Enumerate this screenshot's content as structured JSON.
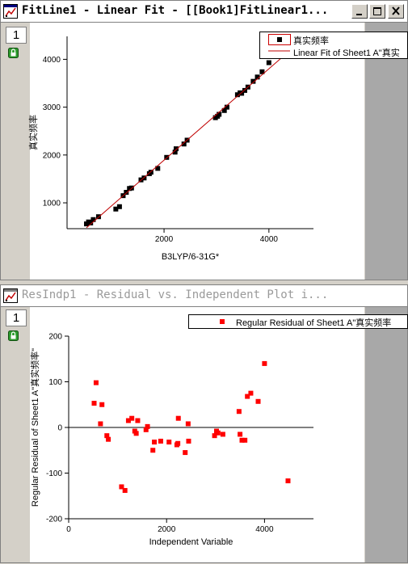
{
  "window1": {
    "title": "FitLine1 - Linear Fit - [[Book1]FitLinear1...",
    "page_number": "1",
    "legend": {
      "items": [
        {
          "label": "真实频率",
          "marker": "square",
          "color": "#000000"
        },
        {
          "label": "Linear Fit of Sheet1 A\"真实",
          "marker": "line",
          "color": "#c00000"
        }
      ]
    }
  },
  "window2": {
    "title": "ResIndp1 - Residual vs. Independent Plot i...",
    "page_number": "1",
    "legend": {
      "items": [
        {
          "label": "Regular Residual of Sheet1 A\"真实频率",
          "marker": "square",
          "color": "#ff0000"
        }
      ]
    }
  },
  "colors": {
    "fit_points": "#000000",
    "fit_line": "#c00000",
    "residual_points": "#ff0000",
    "gray_strip": "#a8a8a8",
    "title_active_text": "#000000",
    "title_inactive_text": "#9a9a9a"
  },
  "icons": [
    "graph-window-icon",
    "minimize-icon",
    "restore-icon",
    "close-icon",
    "lock-icon"
  ],
  "chart_data": [
    {
      "type": "scatter",
      "title": "",
      "xlabel": "B3LYP/6-31G*",
      "ylabel": "真实频率",
      "xlim": [
        150,
        4850
      ],
      "ylim": [
        460,
        4480
      ],
      "xticks": [
        2000,
        4000
      ],
      "yticks": [
        1000,
        2000,
        3000,
        4000
      ],
      "series": [
        {
          "name": "真实频率",
          "x": [
            520,
            560,
            600,
            650,
            750,
            1080,
            1150,
            1220,
            1280,
            1340,
            1380,
            1560,
            1620,
            1720,
            1750,
            1880,
            2050,
            2210,
            2230,
            2380,
            2440,
            2980,
            3020,
            3050,
            3150,
            3200,
            3400,
            3450,
            3480,
            3540,
            3600,
            3700,
            3780,
            3870,
            4000,
            4480
          ],
          "y": [
            560,
            600,
            580,
            650,
            710,
            870,
            920,
            1150,
            1220,
            1300,
            1310,
            1480,
            1520,
            1610,
            1640,
            1720,
            1950,
            2060,
            2130,
            2230,
            2310,
            2780,
            2810,
            2850,
            2930,
            3000,
            3260,
            3300,
            3290,
            3350,
            3420,
            3540,
            3630,
            3740,
            3930,
            4130
          ]
        },
        {
          "name": "Linear Fit of Sheet1 A\"真实",
          "type": "line",
          "x": [
            520,
            4480
          ],
          "y": [
            480,
            4260
          ]
        }
      ]
    },
    {
      "type": "scatter",
      "title": "",
      "xlabel": "Independent Variable",
      "ylabel": "Regular Residual of Sheet1 A\"真实频率\"",
      "xlim": [
        0,
        5000
      ],
      "ylim": [
        -200,
        200
      ],
      "xticks": [
        0,
        2000,
        4000
      ],
      "yticks": [
        -200,
        -100,
        0,
        100,
        200
      ],
      "series": [
        {
          "name": "Regular Residual of Sheet1 A\"真实频率",
          "x": [
            520,
            560,
            650,
            680,
            780,
            810,
            1080,
            1150,
            1220,
            1290,
            1350,
            1380,
            1410,
            1580,
            1610,
            1720,
            1750,
            1880,
            2050,
            2210,
            2230,
            2240,
            2380,
            2440,
            2450,
            2980,
            3020,
            3050,
            3150,
            3480,
            3500,
            3540,
            3600,
            3650,
            3720,
            3870,
            4000,
            4480
          ],
          "y": [
            53,
            98,
            8,
            50,
            -18,
            -26,
            -130,
            -138,
            15,
            20,
            -8,
            -13,
            15,
            -5,
            2,
            -50,
            -32,
            -30,
            -32,
            -38,
            -35,
            20,
            -55,
            8,
            -30,
            -18,
            -8,
            -12,
            -15,
            35,
            -15,
            -28,
            -28,
            68,
            75,
            57,
            140,
            -117
          ]
        }
      ]
    }
  ]
}
